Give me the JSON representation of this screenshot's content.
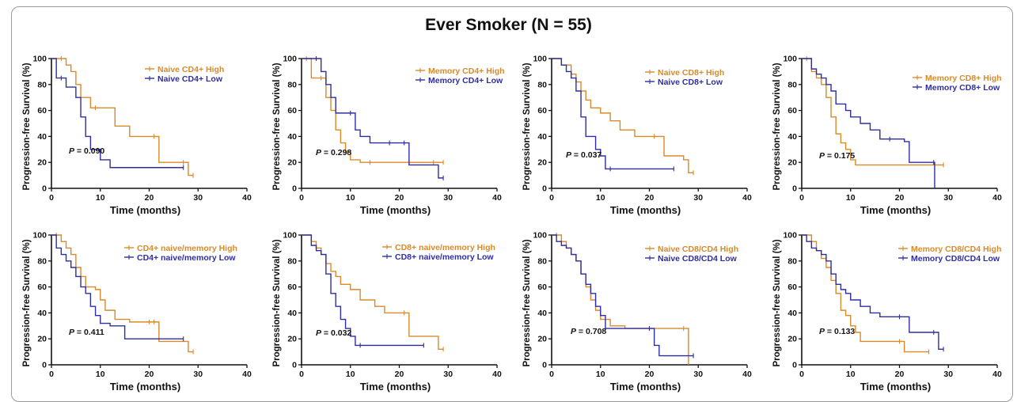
{
  "figure": {
    "title": "Ever Smoker (N = 55)"
  },
  "colors": {
    "high": "#d98a2b",
    "low": "#2e2ea3",
    "axis": "#111111"
  },
  "chart_data": [
    {
      "type": "line",
      "title": "",
      "xlabel": "Time (months)",
      "ylabel": "Progression-free Survival (%)",
      "xlim": [
        0,
        40
      ],
      "ylim": [
        0,
        100
      ],
      "xticks": [
        "0",
        "10",
        "20",
        "30",
        "40"
      ],
      "yticks": [
        "0",
        "20",
        "40",
        "60",
        "80",
        "100"
      ],
      "legend_position": "top-right",
      "p_prefix": "P",
      "p_text": " = 0.090",
      "series": [
        {
          "name": "Naive CD4+ High",
          "x": [
            0,
            2,
            3,
            4,
            5,
            6,
            8,
            9,
            13,
            16,
            21,
            22,
            27,
            28,
            29
          ],
          "y": [
            100,
            100,
            95,
            90,
            80,
            70,
            62,
            62,
            48,
            40,
            40,
            20,
            20,
            10,
            10
          ]
        },
        {
          "name": "Naive CD4+ Low",
          "x": [
            0,
            1,
            2,
            3,
            5,
            6,
            7,
            8,
            10,
            12,
            27
          ],
          "y": [
            100,
            85,
            85,
            78,
            70,
            55,
            40,
            30,
            22,
            16,
            16
          ]
        }
      ]
    },
    {
      "type": "line",
      "title": "",
      "xlabel": "Time (months)",
      "ylabel": "Progression-free Survival (%)",
      "xlim": [
        0,
        40
      ],
      "ylim": [
        0,
        100
      ],
      "xticks": [
        "0",
        "10",
        "20",
        "30",
        "40"
      ],
      "yticks": [
        "0",
        "20",
        "40",
        "60",
        "80",
        "100"
      ],
      "legend_position": "top-right",
      "p_prefix": "P",
      "p_text": " = 0.298",
      "series": [
        {
          "name": "Memory CD4+ High",
          "x": [
            0,
            1,
            2,
            4,
            5,
            6,
            7,
            8,
            9,
            10,
            12,
            14,
            27,
            29
          ],
          "y": [
            100,
            100,
            85,
            85,
            70,
            60,
            45,
            35,
            28,
            22,
            20,
            20,
            20,
            20
          ]
        },
        {
          "name": "Memory CD4+ Low",
          "x": [
            0,
            3,
            4,
            5,
            6,
            7,
            10,
            11,
            12,
            14,
            18,
            21,
            22,
            28,
            29
          ],
          "y": [
            100,
            100,
            90,
            80,
            70,
            58,
            58,
            45,
            40,
            35,
            35,
            35,
            18,
            8,
            8
          ]
        }
      ]
    },
    {
      "type": "line",
      "title": "",
      "xlabel": "Time (months)",
      "ylabel": "Progression-free Survival (%)",
      "xlim": [
        0,
        40
      ],
      "ylim": [
        0,
        100
      ],
      "xticks": [
        "0",
        "10",
        "20",
        "30",
        "40"
      ],
      "yticks": [
        "0",
        "20",
        "40",
        "60",
        "80",
        "100"
      ],
      "legend_position": "top-right",
      "p_prefix": "P",
      "p_text": " = 0.037",
      "series": [
        {
          "name": "Naive CD8+ High",
          "x": [
            0,
            2,
            4,
            5,
            6,
            7,
            8,
            10,
            12,
            14,
            17,
            21,
            23,
            27,
            28,
            29
          ],
          "y": [
            100,
            95,
            88,
            82,
            75,
            68,
            62,
            58,
            52,
            45,
            40,
            40,
            25,
            22,
            12,
            12
          ]
        },
        {
          "name": "Naive CD8+ Low",
          "x": [
            0,
            2,
            3,
            4,
            5,
            6,
            7,
            9,
            10,
            11,
            12,
            25
          ],
          "y": [
            100,
            95,
            90,
            85,
            75,
            55,
            40,
            30,
            25,
            15,
            15,
            15
          ]
        }
      ]
    },
    {
      "type": "line",
      "title": "",
      "xlabel": "Time (months)",
      "ylabel": "Progression-free Survival (%)",
      "xlim": [
        0,
        40
      ],
      "ylim": [
        0,
        100
      ],
      "xticks": [
        "0",
        "10",
        "20",
        "30",
        "40"
      ],
      "yticks": [
        "0",
        "20",
        "40",
        "60",
        "80",
        "100"
      ],
      "legend_position": "top-right",
      "p_prefix": "P",
      "p_text": " = 0.175",
      "series": [
        {
          "name": "Memory CD8+ High",
          "x": [
            0,
            1,
            2,
            3,
            4,
            5,
            6,
            7,
            8,
            9,
            10,
            11,
            29
          ],
          "y": [
            100,
            100,
            90,
            85,
            80,
            70,
            55,
            42,
            35,
            30,
            22,
            18,
            18
          ]
        },
        {
          "name": "Memory CD8+ Low",
          "x": [
            0,
            2,
            3,
            4,
            5,
            6,
            7,
            9,
            10,
            12,
            14,
            16,
            18,
            21,
            22,
            27,
            27.2
          ],
          "y": [
            100,
            92,
            88,
            85,
            80,
            75,
            65,
            60,
            55,
            50,
            45,
            38,
            38,
            36,
            20,
            20,
            0
          ]
        }
      ]
    },
    {
      "type": "line",
      "title": "",
      "xlabel": "Time (months)",
      "ylabel": "Progression-free Survival (%)",
      "xlim": [
        0,
        40
      ],
      "ylim": [
        0,
        100
      ],
      "xticks": [
        "0",
        "10",
        "20",
        "30",
        "40"
      ],
      "yticks": [
        "0",
        "20",
        "40",
        "60",
        "80",
        "100"
      ],
      "legend_position": "top-right",
      "p_prefix": "P",
      "p_text": " = 0.411",
      "series": [
        {
          "name": "CD4+ naive/memory High",
          "x": [
            0,
            1,
            2,
            3,
            4,
            5,
            6,
            7,
            9,
            10,
            11,
            13,
            16,
            20,
            21,
            22,
            28,
            29
          ],
          "y": [
            100,
            100,
            95,
            90,
            85,
            75,
            68,
            60,
            58,
            50,
            42,
            35,
            33,
            33,
            33,
            18,
            10,
            10
          ]
        },
        {
          "name": "CD4+ naive/memory Low",
          "x": [
            0,
            1,
            2,
            3,
            4,
            5,
            6,
            7,
            8,
            9,
            10,
            12,
            15,
            27
          ],
          "y": [
            100,
            90,
            85,
            80,
            75,
            68,
            60,
            55,
            45,
            38,
            32,
            30,
            20,
            20
          ]
        }
      ]
    },
    {
      "type": "line",
      "title": "",
      "xlabel": "Time (months)",
      "ylabel": "Progression-free Survival (%)",
      "xlim": [
        0,
        40
      ],
      "ylim": [
        0,
        100
      ],
      "xticks": [
        "0",
        "10",
        "20",
        "30",
        "40"
      ],
      "yticks": [
        "0",
        "20",
        "40",
        "60",
        "80",
        "100"
      ],
      "legend_position": "top-right",
      "p_prefix": "P",
      "p_text": " = 0.032",
      "series": [
        {
          "name": "CD8+ naive/memory High",
          "x": [
            0,
            2,
            3,
            4,
            5,
            6,
            7,
            8,
            10,
            12,
            15,
            17,
            21,
            22,
            28,
            29
          ],
          "y": [
            100,
            95,
            90,
            85,
            78,
            72,
            68,
            62,
            58,
            50,
            45,
            40,
            40,
            22,
            12,
            12
          ]
        },
        {
          "name": "CD8+ naive/memory Low",
          "x": [
            0,
            2,
            3,
            4,
            5,
            6,
            7,
            8,
            9,
            10,
            11,
            12,
            25
          ],
          "y": [
            100,
            92,
            88,
            85,
            70,
            55,
            45,
            35,
            28,
            22,
            15,
            15,
            15
          ]
        }
      ]
    },
    {
      "type": "line",
      "title": "",
      "xlabel": "Time (months)",
      "ylabel": "Progression-free Survival (%)",
      "xlim": [
        0,
        40
      ],
      "ylim": [
        0,
        100
      ],
      "xticks": [
        "0",
        "10",
        "20",
        "30",
        "40"
      ],
      "yticks": [
        "0",
        "20",
        "40",
        "60",
        "80",
        "100"
      ],
      "legend_position": "top-right",
      "p_prefix": "P",
      "p_text": " = 0.708",
      "series": [
        {
          "name": "Naive CD8/CD4 High",
          "x": [
            0,
            1,
            2,
            3,
            4,
            5,
            6,
            7,
            8,
            9,
            10,
            12,
            15,
            27,
            28
          ],
          "y": [
            100,
            100,
            95,
            90,
            85,
            80,
            70,
            60,
            50,
            42,
            35,
            30,
            28,
            28,
            0
          ]
        },
        {
          "name": "Naive CD8/CD4 Low",
          "x": [
            0,
            1,
            2,
            3,
            4,
            5,
            6,
            7,
            8,
            9,
            10,
            11,
            20,
            21,
            22,
            29
          ],
          "y": [
            100,
            95,
            92,
            90,
            85,
            80,
            70,
            62,
            55,
            45,
            38,
            28,
            28,
            15,
            7,
            7
          ]
        }
      ]
    },
    {
      "type": "line",
      "title": "",
      "xlabel": "Time (months)",
      "ylabel": "Progression-free Survival (%)",
      "xlim": [
        0,
        40
      ],
      "ylim": [
        0,
        100
      ],
      "xticks": [
        "0",
        "10",
        "20",
        "30",
        "40"
      ],
      "yticks": [
        "0",
        "20",
        "40",
        "60",
        "80",
        "100"
      ],
      "legend_position": "top-right",
      "p_prefix": "P",
      "p_text": " = 0.133",
      "series": [
        {
          "name": "Memory CD8/CD4 High",
          "x": [
            0,
            2,
            3,
            4,
            5,
            6,
            7,
            8,
            9,
            10,
            11,
            12,
            20,
            21,
            26
          ],
          "y": [
            100,
            95,
            88,
            82,
            75,
            65,
            55,
            42,
            38,
            30,
            25,
            18,
            18,
            10,
            10
          ]
        },
        {
          "name": "Memory CD8/CD4 Low",
          "x": [
            0,
            1,
            2,
            3,
            4,
            5,
            6,
            7,
            8,
            9,
            10,
            12,
            14,
            16,
            20,
            22,
            27,
            28,
            29
          ],
          "y": [
            100,
            95,
            90,
            88,
            85,
            80,
            70,
            62,
            58,
            55,
            50,
            45,
            40,
            37,
            37,
            25,
            25,
            12,
            12
          ]
        }
      ]
    }
  ]
}
